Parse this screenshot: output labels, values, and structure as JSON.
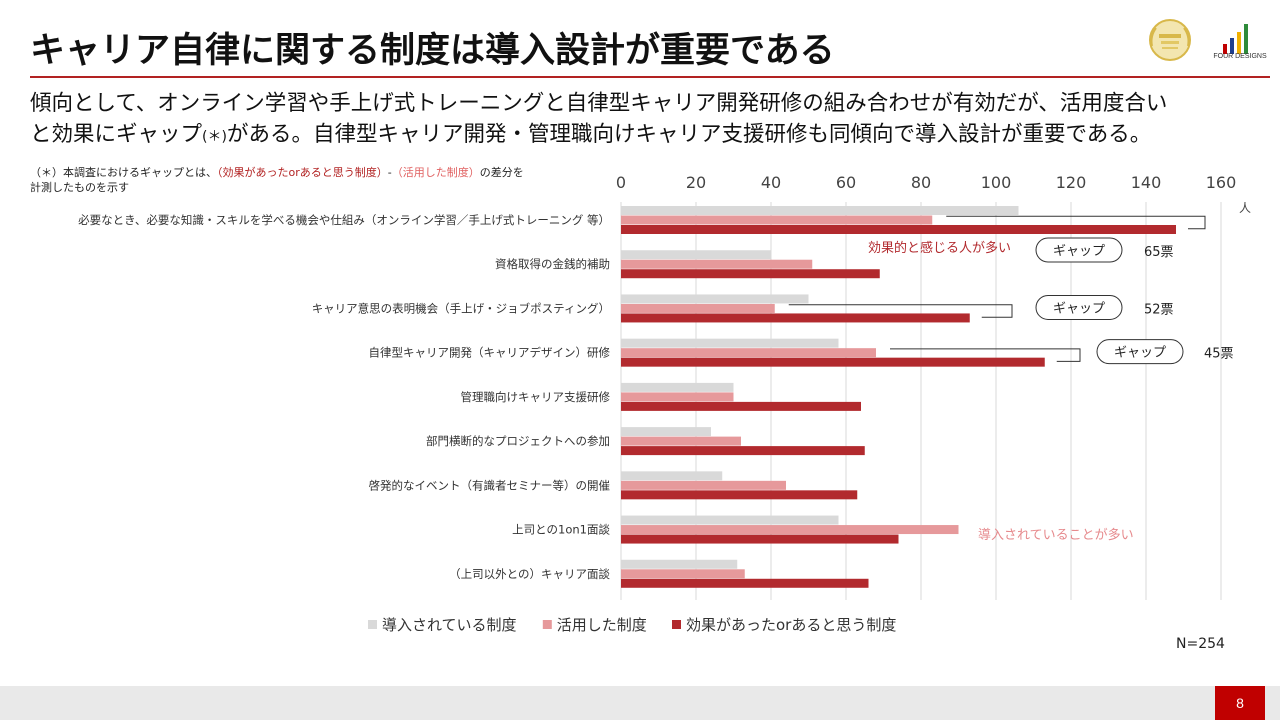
{
  "page": {
    "title": "キャリア自律に関する制度は導入設計が重要である",
    "subtitle_line1": "傾向として、オンライン学習や手上げ式トレーニングと自律型キャリア開発研修の組み合わせが有効だが、活用度合い",
    "subtitle_line2a": "と効果にギャップ",
    "subtitle_line2b": "(＊)",
    "subtitle_line2c": "がある。自律型キャリア開発・管理職向けキャリア支援研修も同傾向で導入設計が重要である。",
    "note_prefix": "（＊）本調査におけるギャップとは、",
    "note_red1": "（効果があったorあると思う制度）",
    "note_dash": "-",
    "note_red2": "（活用した制度）",
    "note_suffix": "の差分を",
    "note_line2": "計測したものを示す",
    "sample_size": "N=254",
    "page_number": "8",
    "logo_text": "FOUR DESIGNS"
  },
  "chart_data": {
    "type": "bar",
    "orientation": "horizontal",
    "categories": [
      "必要なとき、必要な知識・スキルを学べる機会や仕組み（オンライン学習／手上げ式トレーニング 等）",
      "資格取得の金銭的補助",
      "キャリア意思の表明機会（手上げ・ジョブポスティング）",
      "自律型キャリア開発（キャリアデザイン）研修",
      "管理職向けキャリア支援研修",
      "部門横断的なプロジェクトへの参加",
      "啓発的なイベント（有識者セミナー等）の開催",
      "上司との1on1面談",
      "（上司以外との）キャリア面談"
    ],
    "series": [
      {
        "name": "導入されている制度",
        "color": "#d9d9d9",
        "values": [
          106,
          40,
          50,
          58,
          30,
          24,
          27,
          58,
          31
        ]
      },
      {
        "name": "活用した制度",
        "color": "#e6999b",
        "values": [
          83,
          51,
          41,
          68,
          30,
          32,
          44,
          90,
          33
        ]
      },
      {
        "name": "効果があったorあると思う制度",
        "color": "#b22a2e",
        "values": [
          148,
          69,
          93,
          113,
          64,
          65,
          63,
          74,
          66
        ]
      }
    ],
    "xlim": [
      0,
      160
    ],
    "xticks": [
      0,
      20,
      40,
      60,
      80,
      100,
      120,
      140,
      160
    ],
    "x_unit": "人",
    "grid": true,
    "legend_position": "bottom",
    "annotations": {
      "effective_note": "効果的と感じる人が多い",
      "introduced_note": "導入されていることが多い",
      "gap_label": "ギャップ",
      "gaps": [
        {
          "category_index": 0,
          "value": "65票"
        },
        {
          "category_index": 2,
          "value": "52票"
        },
        {
          "category_index": 3,
          "value": "45票"
        }
      ]
    }
  }
}
